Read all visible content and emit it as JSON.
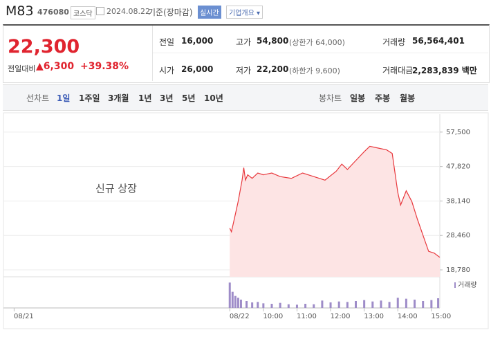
{
  "header": {
    "name": "M83",
    "code": "476080",
    "market": "코스닥",
    "date": "2024.08.22",
    "basis": "기준(장마감)",
    "realtime": "실시간",
    "company": "기업개요"
  },
  "summary": {
    "price": "22,300",
    "change_label": "전일대비",
    "change": "6,300",
    "change_rate": "+39.38%",
    "items": [
      {
        "label": "전일",
        "value": "16,000"
      },
      {
        "label": "고가",
        "value": "54,800",
        "note": "(상한가 64,000)"
      },
      {
        "label": "거래량",
        "value": "56,564,401"
      },
      {
        "label": "시가",
        "value": "26,000"
      },
      {
        "label": "저가",
        "value": "22,200",
        "note": "(하한가 9,600)"
      },
      {
        "label": "거래대금",
        "value": "2,283,839 백만"
      }
    ]
  },
  "tabs": {
    "line_label": "선차트",
    "line": [
      "1일",
      "1주일",
      "3개월",
      "1년",
      "3년",
      "5년",
      "10년"
    ],
    "candle_label": "봉차트",
    "candle": [
      "일봉",
      "주봉",
      "월봉"
    ]
  },
  "chart_data": [
    {
      "type": "area",
      "annotation": "신규 상장",
      "color": "#e8383d",
      "x": [
        0,
        3,
        8,
        15,
        22,
        25,
        28,
        32,
        40,
        50,
        60,
        75,
        90,
        110,
        130,
        150,
        170,
        190,
        200,
        210,
        225,
        240,
        250,
        265,
        280,
        290,
        295,
        300,
        305,
        315,
        325,
        335,
        345,
        355,
        365,
        375
      ],
      "values": [
        30500,
        29500,
        33000,
        38000,
        44000,
        47500,
        44000,
        45500,
        44500,
        46000,
        45500,
        46000,
        45000,
        44500,
        46000,
        45000,
        44000,
        46500,
        48500,
        47000,
        49500,
        52000,
        53500,
        53000,
        52500,
        51500,
        46000,
        40500,
        37000,
        41000,
        38000,
        33000,
        28500,
        24000,
        23500,
        22300
      ],
      "xlim": [
        -404,
        375
      ],
      "ylim": [
        16840,
        62530
      ],
      "xticks": [
        {
          "value": -385,
          "label": "08/21"
        },
        {
          "value": 0,
          "label": "08/22"
        },
        {
          "value": 60,
          "label": "10:00"
        },
        {
          "value": 120,
          "label": "11:00"
        },
        {
          "value": 180,
          "label": "12:00"
        },
        {
          "value": 240,
          "label": "13:00"
        },
        {
          "value": 300,
          "label": "14:00"
        },
        {
          "value": 360,
          "label": "15:00"
        }
      ],
      "yticks": [
        {
          "value": 57500,
          "label": "57,500"
        },
        {
          "value": 47820,
          "label": "47,820"
        },
        {
          "value": 38140,
          "label": "38,140"
        },
        {
          "value": 28460,
          "label": "28,460"
        },
        {
          "value": 18780,
          "label": "18,780"
        }
      ]
    },
    {
      "type": "bar",
      "name": "거래량",
      "color": "#9e8cc8",
      "xlim": [
        -404,
        375
      ],
      "ylim": [
        0,
        6000000
      ],
      "x": [
        0,
        5,
        10,
        15,
        20,
        30,
        40,
        50,
        60,
        75,
        90,
        105,
        120,
        135,
        150,
        165,
        180,
        195,
        210,
        225,
        240,
        255,
        270,
        285,
        300,
        315,
        330,
        345,
        360,
        372
      ],
      "values": [
        5500000,
        3500000,
        2600000,
        2200000,
        1800000,
        1500000,
        1200000,
        1300000,
        1000000,
        900000,
        1100000,
        800000,
        700000,
        900000,
        800000,
        1600000,
        1200000,
        1400000,
        1300000,
        1500000,
        1700000,
        1400000,
        1600000,
        1300000,
        2200000,
        2000000,
        1800000,
        1500000,
        1700000,
        2100000
      ]
    }
  ]
}
